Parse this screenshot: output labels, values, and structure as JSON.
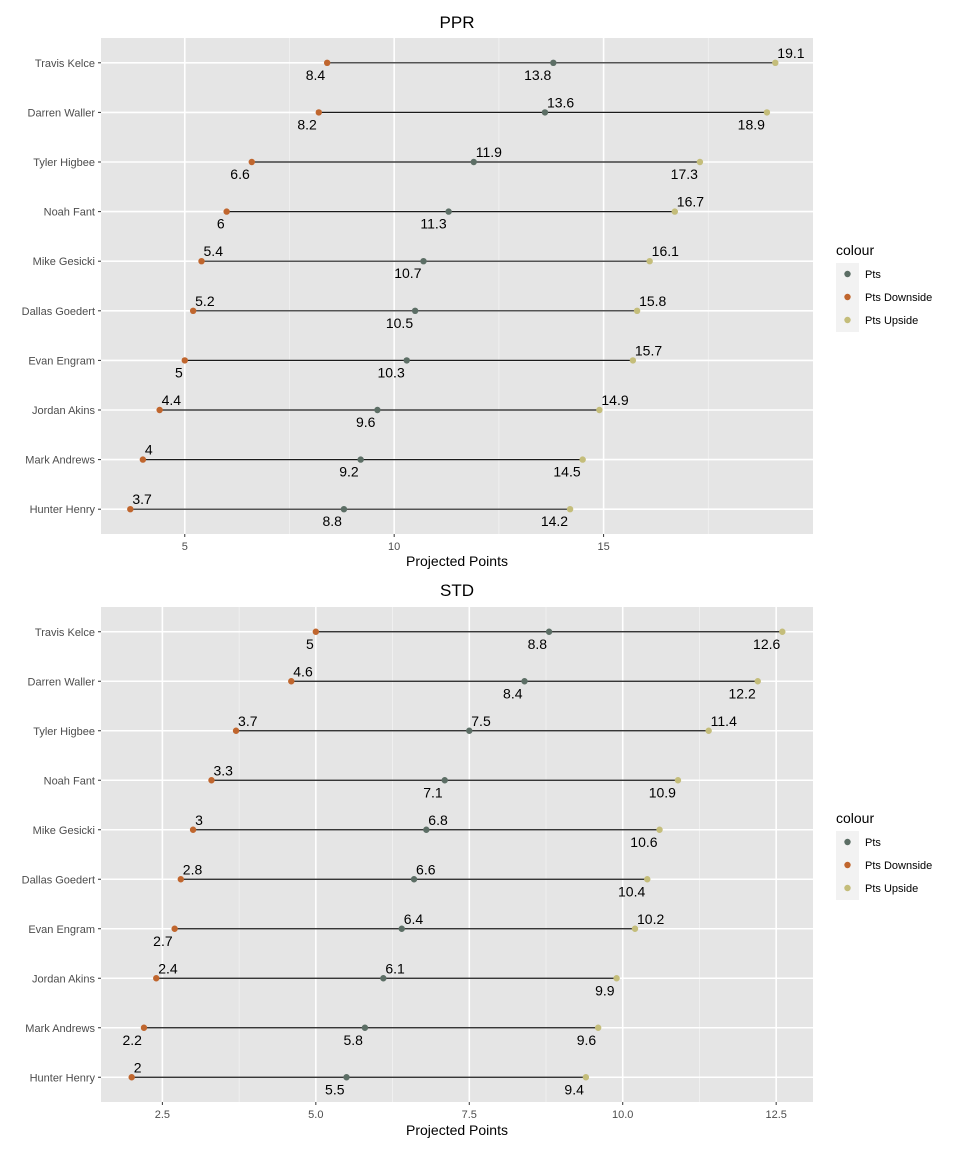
{
  "chart_data": [
    {
      "type": "dumbbell",
      "title": "PPR",
      "xlabel": "Projected Points",
      "ylabel": "",
      "xlim": [
        3,
        20
      ],
      "x_ticks": [
        5,
        10,
        15
      ],
      "x_tick_labels": [
        "5",
        "10",
        "15"
      ],
      "grid": true,
      "categories": [
        "Travis Kelce",
        "Darren Waller",
        "Tyler Higbee",
        "Noah Fant",
        "Mike Gesicki",
        "Dallas Goedert",
        "Evan Engram",
        "Jordan Akins",
        "Mark Andrews",
        "Hunter Henry"
      ],
      "series": [
        {
          "name": "Pts",
          "color": "#5c6e65",
          "values": [
            13.8,
            13.6,
            11.9,
            11.3,
            10.7,
            10.5,
            10.3,
            9.6,
            9.2,
            8.8
          ]
        },
        {
          "name": "Pts Downside",
          "color": "#c0662e",
          "values": [
            8.4,
            8.2,
            6.6,
            6,
            5.4,
            5.2,
            5,
            4.4,
            4,
            3.7
          ]
        },
        {
          "name": "Pts Upside",
          "color": "#c4bd7a",
          "values": [
            19.1,
            18.9,
            17.3,
            16.7,
            16.1,
            15.8,
            15.7,
            14.9,
            14.5,
            14.2
          ]
        }
      ],
      "legend_title": "colour",
      "legend_position": "right"
    },
    {
      "type": "dumbbell",
      "title": "STD",
      "xlabel": "Projected Points",
      "ylabel": "",
      "xlim": [
        1.5,
        13.1
      ],
      "x_ticks": [
        2.5,
        5.0,
        7.5,
        10.0,
        12.5
      ],
      "x_tick_labels": [
        "2.5",
        "5.0",
        "7.5",
        "10.0",
        "12.5"
      ],
      "grid": true,
      "categories": [
        "Travis Kelce",
        "Darren Waller",
        "Tyler Higbee",
        "Noah Fant",
        "Mike Gesicki",
        "Dallas Goedert",
        "Evan Engram",
        "Jordan Akins",
        "Mark Andrews",
        "Hunter Henry"
      ],
      "series": [
        {
          "name": "Pts",
          "color": "#5c6e65",
          "values": [
            8.8,
            8.4,
            7.5,
            7.1,
            6.8,
            6.6,
            6.4,
            6.1,
            5.8,
            5.5
          ]
        },
        {
          "name": "Pts Downside",
          "color": "#c0662e",
          "values": [
            5,
            4.6,
            3.7,
            3.3,
            3,
            2.8,
            2.7,
            2.4,
            2.2,
            2
          ]
        },
        {
          "name": "Pts Upside",
          "color": "#c4bd7a",
          "values": [
            12.6,
            12.2,
            11.4,
            10.9,
            10.6,
            10.4,
            10.2,
            9.9,
            9.6,
            9.4
          ]
        }
      ],
      "legend_title": "colour",
      "legend_position": "right"
    }
  ]
}
